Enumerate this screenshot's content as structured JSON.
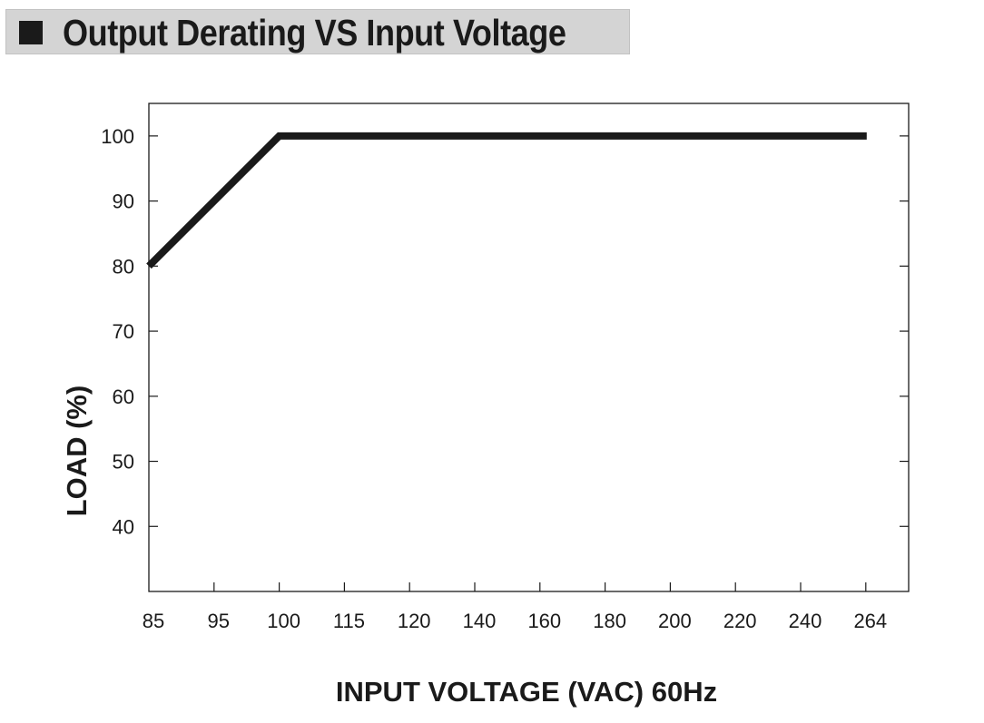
{
  "chart_data": {
    "type": "line",
    "title": "Output Derating VS Input Voltage",
    "xlabel": "INPUT VOLTAGE (VAC) 60Hz",
    "ylabel": "LOAD (%)",
    "x_ticks": [
      "85",
      "95",
      "100",
      "115",
      "120",
      "140",
      "160",
      "180",
      "200",
      "220",
      "240",
      "264"
    ],
    "y_ticks": [
      40,
      50,
      60,
      70,
      80,
      90,
      100
    ],
    "ylim": [
      30,
      105
    ],
    "grid": false,
    "series": [
      {
        "points": [
          {
            "x": "85",
            "y": 80
          },
          {
            "x": "100",
            "y": 100
          },
          {
            "x": "264",
            "y": 100
          }
        ]
      }
    ],
    "colors": {
      "line": "#1a1a1a",
      "title_bar": "#d4d4d4"
    }
  }
}
